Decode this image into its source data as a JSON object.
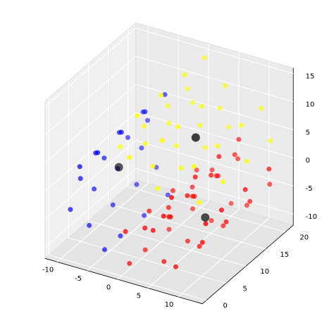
{
  "chart_data": {
    "type": "scatter3d",
    "xlim": [
      -12,
      14
    ],
    "ylim": [
      -1,
      22
    ],
    "zlim": [
      -12,
      16
    ],
    "xticks": [
      -10,
      -5,
      0,
      5,
      10
    ],
    "yticks": [
      0,
      5,
      10,
      15,
      20
    ],
    "zticks": [
      -10,
      -5,
      0,
      5,
      10,
      15
    ],
    "grid": true,
    "series": [
      {
        "color": "#ff0000",
        "marker_size": 3.5,
        "x": [
          0,
          0,
          0,
          0,
          1.9,
          1.9,
          1.9,
          1.9,
          3.9,
          3.9,
          3.9,
          3.9,
          5.5,
          5.5,
          5.5,
          5.5,
          6.3,
          6.3,
          6.3,
          6.3,
          6.3,
          6.3,
          6.3,
          6.3,
          0,
          0,
          0,
          0,
          4.4,
          4.4,
          4.4,
          4.4,
          8.3,
          8.3,
          8.3,
          8.3,
          11.4,
          11.4,
          11.4,
          11.4,
          12.6,
          12.6,
          12.6,
          12.6
        ],
        "y": [
          1,
          7,
          13,
          19,
          3,
          9,
          15,
          20,
          2,
          6,
          12,
          18,
          4,
          10,
          16,
          21,
          1,
          7,
          13,
          19,
          3,
          9,
          15,
          20,
          2,
          6,
          12,
          18,
          4,
          10,
          16,
          21,
          1,
          7,
          13,
          19,
          3,
          9,
          15,
          20,
          2,
          6,
          12,
          18
        ],
        "z": [
          -4.7,
          -4.7,
          -4.7,
          -4.7,
          -4.7,
          -4.7,
          -4.7,
          -4.7,
          -3.9,
          -3.9,
          -3.9,
          -3.9,
          -2.2,
          -2.2,
          -2.2,
          -2.2,
          0,
          0,
          0,
          0,
          2.1,
          2.1,
          2.1,
          2.1,
          -11,
          -11,
          -11,
          -11,
          -10.5,
          -10.5,
          -10.5,
          -10.5,
          -8.4,
          -8.4,
          -8.4,
          -8.4,
          -4.3,
          -4.3,
          -4.3,
          -4.3,
          0,
          0,
          0,
          0
        ]
      },
      {
        "color": "#ffff00",
        "marker_size": 3.5,
        "x": [
          5.3,
          5.3,
          5.3,
          5.3,
          3.2,
          3.2,
          3.2,
          3.2,
          0,
          0,
          0,
          0,
          -2.8,
          -2.8,
          -2.8,
          -2.8,
          12.2,
          12.2,
          12.2,
          12.2,
          10,
          10,
          10,
          10,
          5.4,
          5.4,
          5.4,
          5.4,
          0,
          0,
          0,
          0
        ],
        "y": [
          1,
          7,
          13,
          19,
          3,
          9,
          15,
          20,
          2,
          6,
          12,
          18,
          4,
          10,
          16,
          21,
          1,
          7,
          13,
          19,
          3,
          9,
          15,
          20,
          2,
          6,
          12,
          18,
          4,
          10,
          16,
          21
        ],
        "z": [
          4.6,
          4.6,
          4.6,
          4.6,
          6.7,
          6.7,
          6.7,
          6.7,
          7.9,
          7.9,
          7.9,
          7.9,
          7.7,
          7.7,
          7.7,
          7.7,
          4.3,
          4.3,
          4.3,
          4.3,
          8.8,
          8.8,
          8.8,
          8.8,
          12.6,
          12.6,
          12.6,
          12.6,
          14.1,
          14.1,
          14.1,
          14.1
        ]
      },
      {
        "color": "#0000ff",
        "marker_size": 3.5,
        "x": [
          -5.9,
          -5.9,
          -5.9,
          -5.9,
          -8.2,
          -8.2,
          -8.2,
          -8.2,
          -9.4,
          -9.4,
          -9.4,
          -9.4,
          -9.1,
          -9.1,
          -9.1,
          -9.1,
          -7.3,
          -7.3,
          -7.3,
          -7.3,
          -4.1,
          -4.1,
          -4.1,
          -4.1
        ],
        "y": [
          3,
          9,
          15,
          20,
          2,
          6,
          12,
          18,
          4,
          10,
          16,
          21,
          1,
          7,
          13,
          19,
          3,
          9,
          15,
          20,
          2,
          6,
          12,
          18
        ],
        "z": [
          6.3,
          6.3,
          6.3,
          6.3,
          3.7,
          3.7,
          3.7,
          3.7,
          0,
          0,
          0,
          0,
          -3.6,
          -3.6,
          -3.6,
          -3.6,
          -7.1,
          -7.1,
          -7.1,
          -7.1,
          -9.8,
          -9.8,
          -9.8,
          -9.8
        ]
      },
      {
        "color": "#000000",
        "marker_size": 6,
        "x": [
          -7.3,
          5.2,
          6.9
        ],
        "y": [
          10.5,
          10.8,
          10.6
        ],
        "z": [
          -1.3,
          7.7,
          -5.9
        ]
      }
    ]
  }
}
